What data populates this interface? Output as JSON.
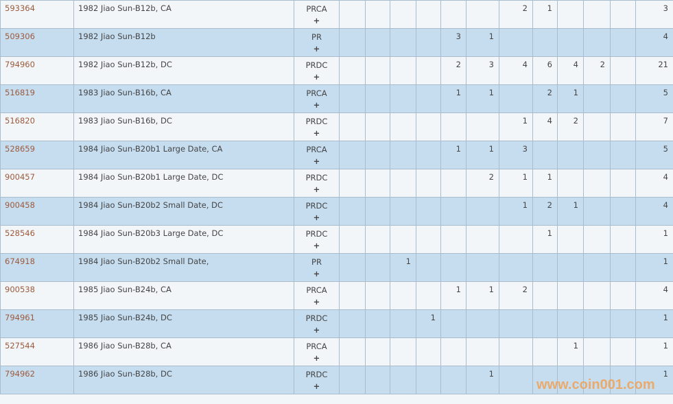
{
  "colors": {
    "row_light": "#f3f6f9",
    "row_blue": "#c6ddf0",
    "link": "#9c5a3c",
    "watermark": "#f0a255"
  },
  "rows": [
    {
      "id": "593364",
      "desc": "1982 Jiao Sun-B12b, CA",
      "designation": "PRCA",
      "counts": [
        "",
        "",
        "",
        "",
        "",
        "",
        "2",
        "1",
        "",
        "",
        ""
      ],
      "total": "3"
    },
    {
      "id": "509306",
      "desc": "1982 Jiao Sun-B12b",
      "designation": "PR",
      "counts": [
        "",
        "",
        "",
        "",
        "3",
        "1",
        "",
        "",
        "",
        "",
        ""
      ],
      "total": "4"
    },
    {
      "id": "794960",
      "desc": "1982 Jiao Sun-B12b, DC",
      "designation": "PRDC",
      "counts": [
        "",
        "",
        "",
        "",
        "2",
        "3",
        "4",
        "6",
        "4",
        "2",
        ""
      ],
      "total": "21"
    },
    {
      "id": "516819",
      "desc": "1983 Jiao Sun-B16b, CA",
      "designation": "PRCA",
      "counts": [
        "",
        "",
        "",
        "",
        "1",
        "1",
        "",
        "2",
        "1",
        "",
        ""
      ],
      "total": "5"
    },
    {
      "id": "516820",
      "desc": "1983 Jiao Sun-B16b, DC",
      "designation": "PRDC",
      "counts": [
        "",
        "",
        "",
        "",
        "",
        "",
        "1",
        "4",
        "2",
        "",
        ""
      ],
      "total": "7"
    },
    {
      "id": "528659",
      "desc": "1984 Jiao Sun-B20b1 Large Date, CA",
      "designation": "PRCA",
      "counts": [
        "",
        "",
        "",
        "",
        "1",
        "1",
        "3",
        "",
        "",
        "",
        ""
      ],
      "total": "5"
    },
    {
      "id": "900457",
      "desc": "1984 Jiao Sun-B20b1 Large Date, DC",
      "designation": "PRDC",
      "counts": [
        "",
        "",
        "",
        "",
        "",
        "2",
        "1",
        "1",
        "",
        "",
        ""
      ],
      "total": "4"
    },
    {
      "id": "900458",
      "desc": "1984 Jiao Sun-B20b2 Small Date, DC",
      "designation": "PRDC",
      "counts": [
        "",
        "",
        "",
        "",
        "",
        "",
        "1",
        "2",
        "1",
        "",
        ""
      ],
      "total": "4"
    },
    {
      "id": "528546",
      "desc": "1984 Jiao Sun-B20b3 Large Date, DC",
      "designation": "PRDC",
      "counts": [
        "",
        "",
        "",
        "",
        "",
        "",
        "",
        "1",
        "",
        "",
        ""
      ],
      "total": "1"
    },
    {
      "id": "674918",
      "desc": "1984 Jiao Sun-B20b2 Small Date,",
      "designation": "PR",
      "counts": [
        "",
        "",
        "1",
        "",
        "",
        "",
        "",
        "",
        "",
        "",
        ""
      ],
      "total": "1"
    },
    {
      "id": "900538",
      "desc": "1985 Jiao Sun-B24b, CA",
      "designation": "PRCA",
      "counts": [
        "",
        "",
        "",
        "",
        "1",
        "1",
        "2",
        "",
        "",
        "",
        ""
      ],
      "total": "4"
    },
    {
      "id": "794961",
      "desc": "1985 Jiao Sun-B24b, DC",
      "designation": "PRDC",
      "counts": [
        "",
        "",
        "",
        "1",
        "",
        "",
        "",
        "",
        "",
        "",
        ""
      ],
      "total": "1"
    },
    {
      "id": "527544",
      "desc": "1986 Jiao Sun-B28b, CA",
      "designation": "PRCA",
      "counts": [
        "",
        "",
        "",
        "",
        "",
        "",
        "",
        "",
        "1",
        "",
        ""
      ],
      "total": "1"
    },
    {
      "id": "794962",
      "desc": "1986 Jiao Sun-B28b, DC",
      "designation": "PRDC",
      "counts": [
        "",
        "",
        "",
        "",
        "",
        "1",
        "",
        "",
        "",
        "",
        ""
      ],
      "total": "1"
    }
  ],
  "expand_label": "+",
  "watermark": "www.coin001.com"
}
